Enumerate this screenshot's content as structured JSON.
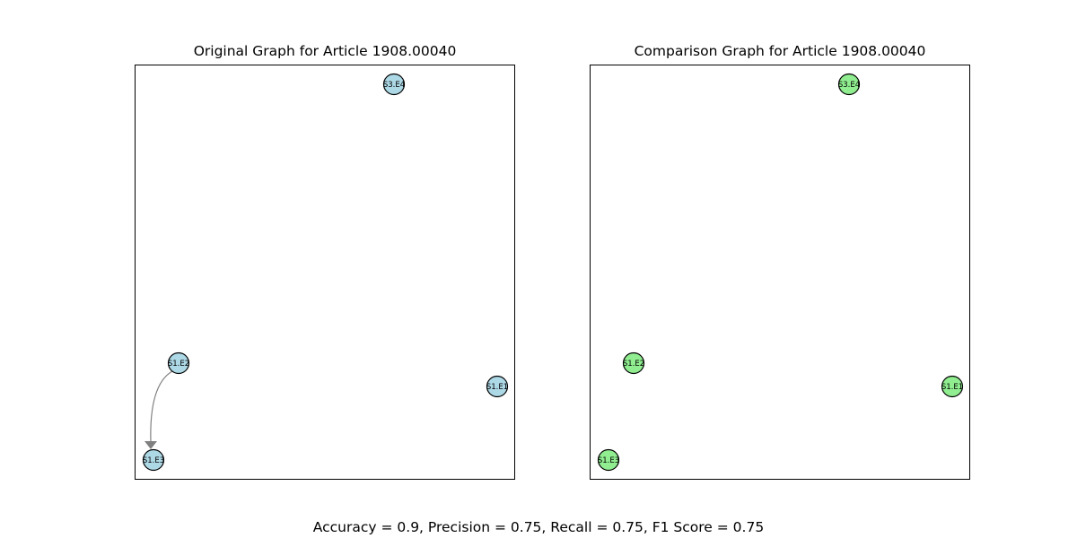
{
  "panels": [
    {
      "title": "Original Graph for Article 1908.00040",
      "node_color": "#add8e6",
      "nodes": [
        "S3.E4",
        "S1.E2",
        "S1.E1",
        "S1.E3"
      ],
      "edges": [
        {
          "from": "S1.E2",
          "to": "S1.E3"
        }
      ]
    },
    {
      "title": "Comparison Graph for Article 1908.00040",
      "node_color": "#90ee90",
      "nodes": [
        "S3.E4",
        "S1.E2",
        "S1.E1",
        "S1.E3"
      ],
      "edges": []
    }
  ],
  "edge_color": "#808080",
  "metrics_text": "Accuracy = 0.9, Precision = 0.75, Recall = 0.75, F1 Score = 0.75"
}
